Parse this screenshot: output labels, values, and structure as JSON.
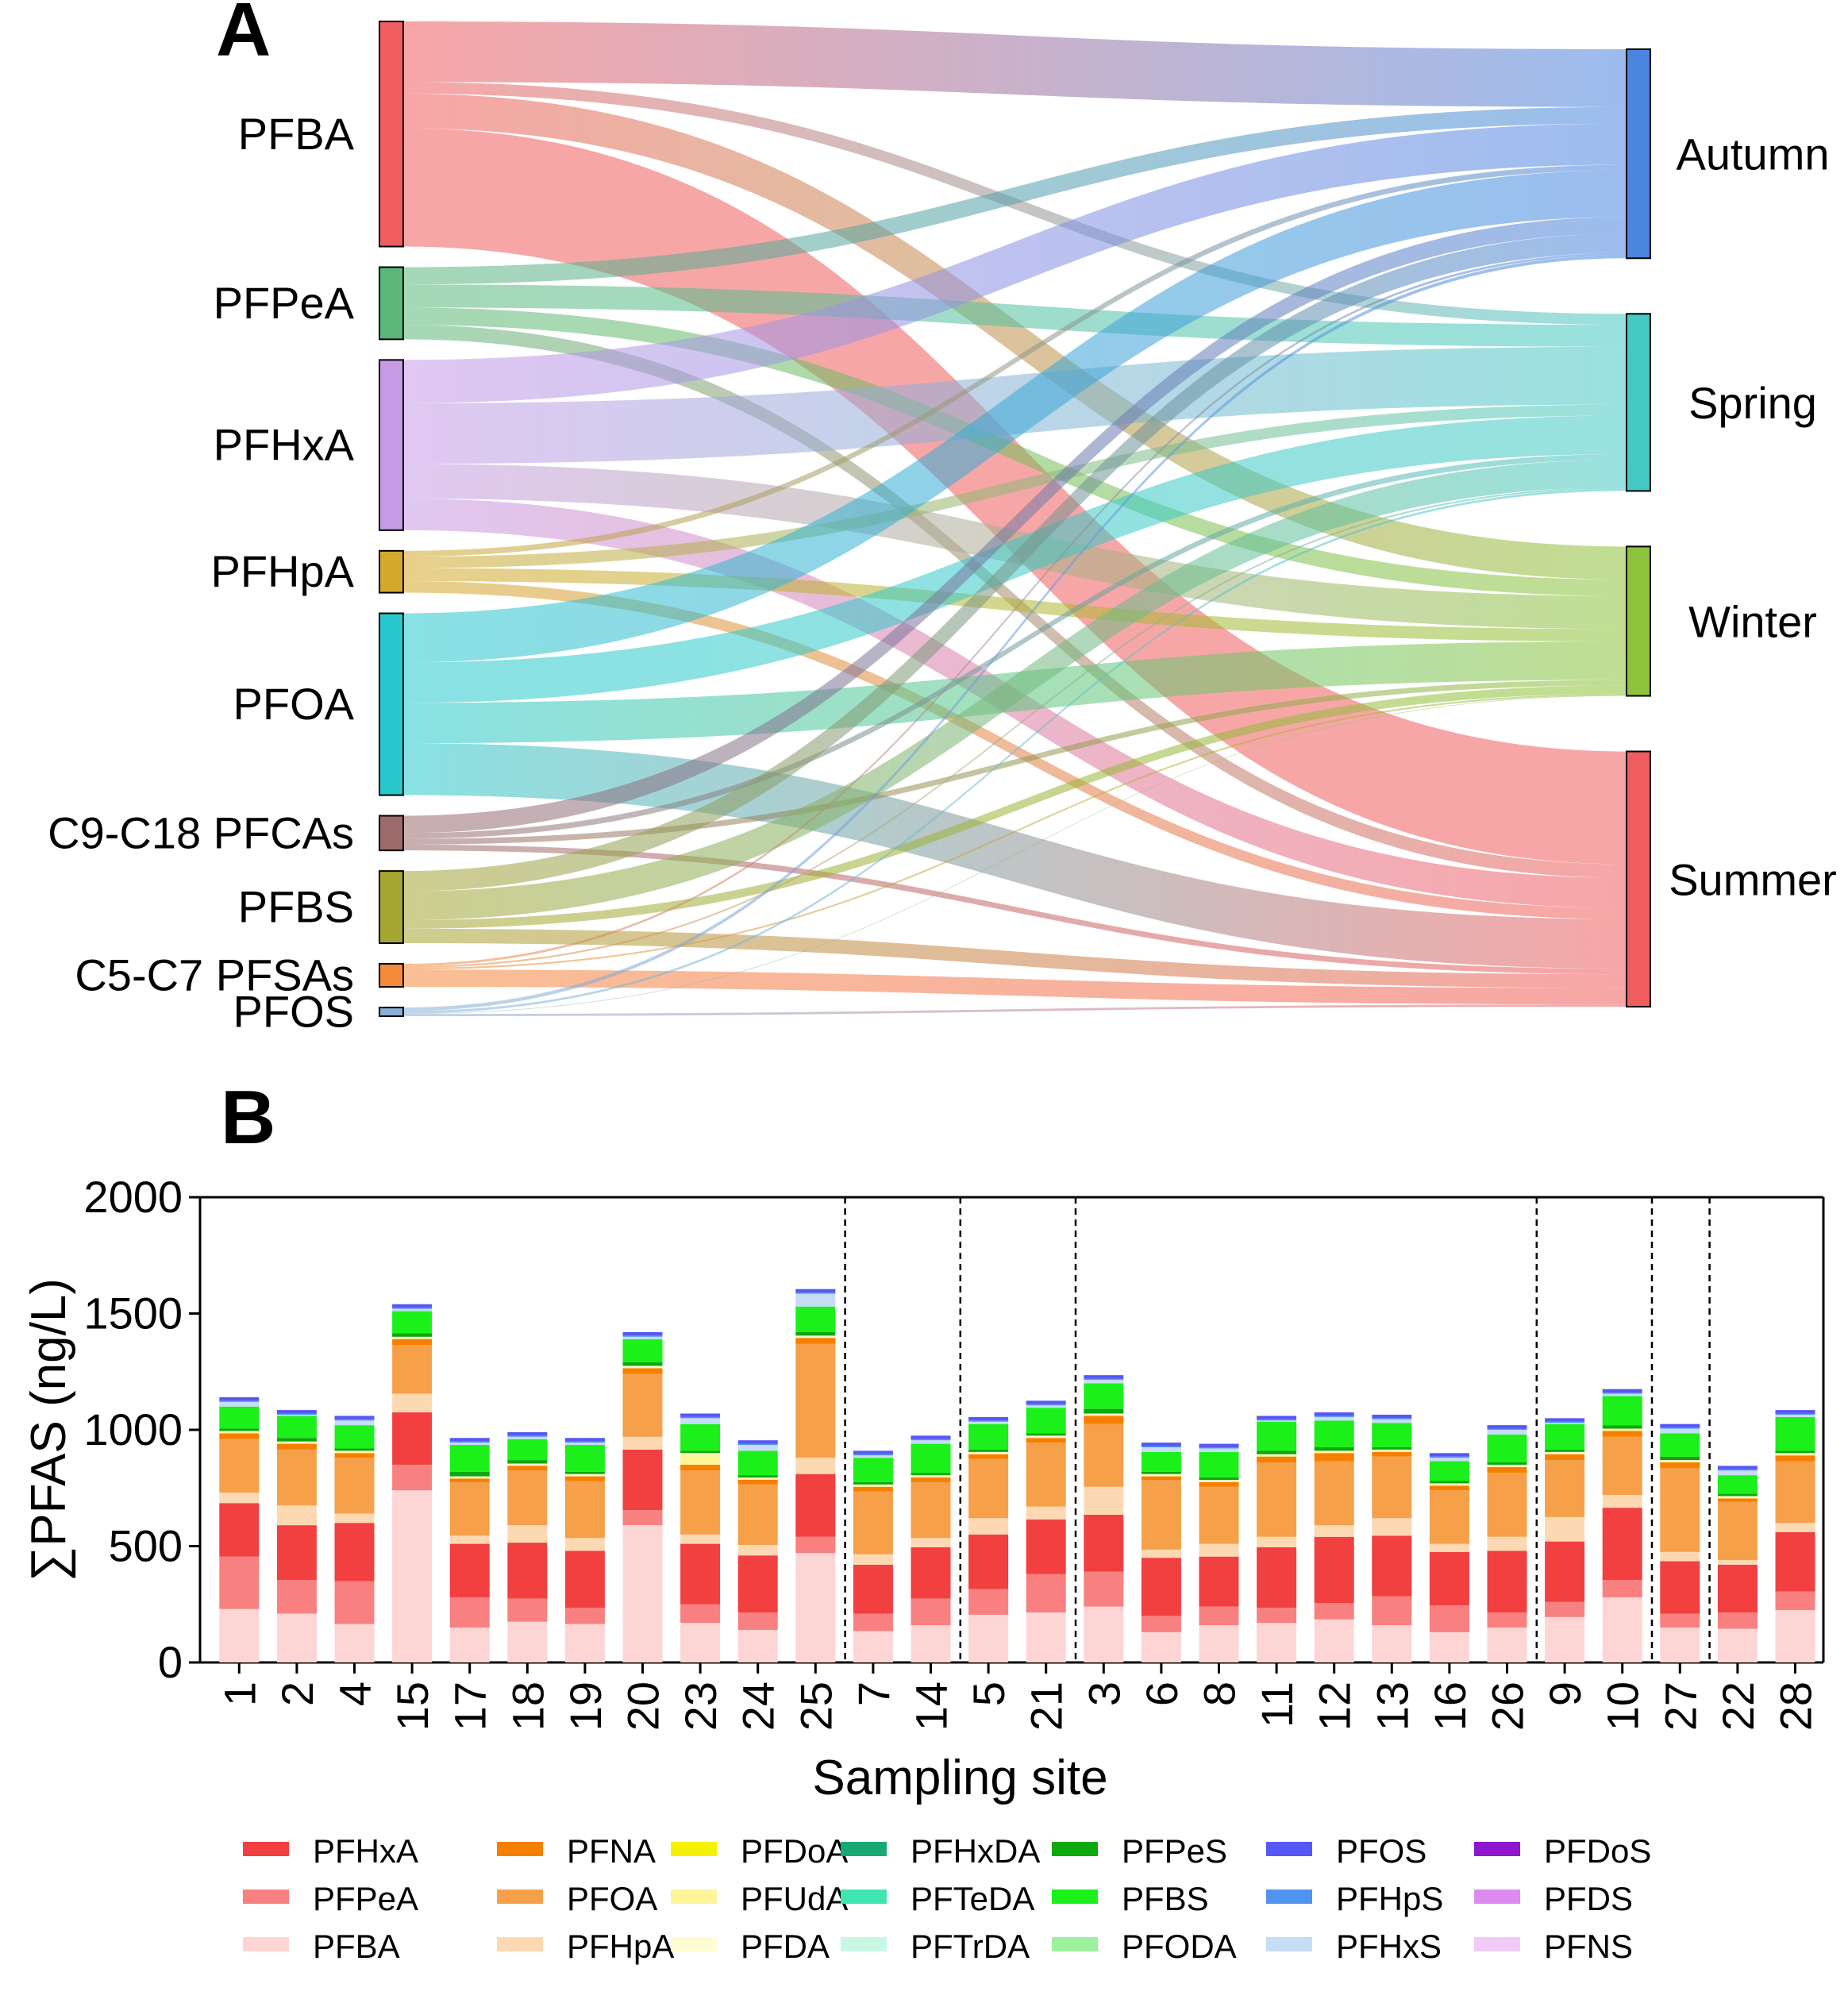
{
  "panel_a_label": "A",
  "panel_b_label": "B",
  "chart_data": [
    {
      "type": "sankey",
      "title": "",
      "sources": [
        {
          "name": "PFBA",
          "color": "#f05d5e"
        },
        {
          "name": "PFPeA",
          "color": "#5bb87a"
        },
        {
          "name": "PFHxA",
          "color": "#c79ae6"
        },
        {
          "name": "PFHpA",
          "color": "#d4a82a"
        },
        {
          "name": "PFOA",
          "color": "#27c9cc"
        },
        {
          "name": "C9-C18 PFCAs",
          "color": "#9b6b6b"
        },
        {
          "name": "PFBS",
          "color": "#a5a531"
        },
        {
          "name": "C5-C7 PFSAs",
          "color": "#f58a3c"
        },
        {
          "name": "PFOS",
          "color": "#8ab0d6"
        }
      ],
      "targets": [
        {
          "name": "Autumn",
          "color": "#4a86e0"
        },
        {
          "name": "Spring",
          "color": "#45c9c4"
        },
        {
          "name": "Winter",
          "color": "#8dc33a"
        },
        {
          "name": "Summer",
          "color": "#f05d5e"
        }
      ],
      "flows": [
        {
          "source": "PFBA",
          "values": [
            210,
            40,
            120,
            410
          ]
        },
        {
          "source": "PFPeA",
          "values": [
            60,
            80,
            60,
            50
          ]
        },
        {
          "source": "PFHxA",
          "values": [
            150,
            210,
            120,
            110
          ]
        },
        {
          "source": "PFHpA",
          "values": [
            20,
            40,
            45,
            40
          ]
        },
        {
          "source": "PFOA",
          "values": [
            170,
            140,
            140,
            180
          ]
        },
        {
          "source": "C9-C18 PFCAs",
          "values": [
            60,
            20,
            20,
            20
          ]
        },
        {
          "source": "PFBS",
          "values": [
            70,
            100,
            30,
            50
          ]
        },
        {
          "source": "C5-C7 PFSAs",
          "values": [
            8,
            6,
            6,
            60
          ]
        },
        {
          "source": "PFOS",
          "values": [
            12,
            8,
            2,
            8
          ]
        }
      ]
    },
    {
      "type": "bar",
      "stacked": true,
      "xlabel": "Sampling site",
      "ylabel": "∑PFAS (ng/L)",
      "ylim": [
        0,
        2000
      ],
      "yticks": [
        "0",
        "500",
        "1000",
        "1500",
        "2000"
      ],
      "categories": [
        "1",
        "2",
        "4",
        "15",
        "17",
        "18",
        "19",
        "20",
        "23",
        "24",
        "25",
        "7",
        "14",
        "5",
        "21",
        "3",
        "6",
        "8",
        "11",
        "12",
        "13",
        "16",
        "26",
        "9",
        "10",
        "27",
        "22",
        "28"
      ],
      "group_separators_after_index": [
        10,
        12,
        14,
        22,
        24,
        25
      ],
      "series": [
        {
          "name": "PFBA",
          "color": "#fdd5d5",
          "values": [
            230,
            210,
            165,
            740,
            150,
            175,
            165,
            590,
            170,
            140,
            470,
            135,
            160,
            205,
            215,
            240,
            130,
            160,
            170,
            185,
            160,
            130,
            150,
            195,
            280,
            150,
            145,
            225
          ]
        },
        {
          "name": "PFPeA",
          "color": "#f98080",
          "values": [
            225,
            145,
            185,
            110,
            130,
            100,
            70,
            65,
            80,
            75,
            70,
            75,
            115,
            110,
            165,
            150,
            70,
            80,
            65,
            70,
            125,
            115,
            65,
            65,
            75,
            60,
            70,
            80
          ]
        },
        {
          "name": "PFHxA",
          "color": "#f23f3f",
          "values": [
            230,
            235,
            250,
            225,
            230,
            240,
            245,
            260,
            260,
            245,
            270,
            210,
            220,
            235,
            235,
            245,
            250,
            215,
            260,
            285,
            260,
            230,
            265,
            260,
            310,
            225,
            205,
            255
          ]
        },
        {
          "name": "PFHpA",
          "color": "#fcd9b3",
          "values": [
            45,
            85,
            40,
            80,
            35,
            75,
            55,
            55,
            40,
            45,
            70,
            45,
            40,
            70,
            55,
            120,
            35,
            55,
            45,
            50,
            75,
            35,
            60,
            105,
            55,
            40,
            20,
            40
          ]
        },
        {
          "name": "PFOA",
          "color": "#f7a04a",
          "values": [
            230,
            240,
            240,
            210,
            230,
            235,
            245,
            270,
            275,
            260,
            490,
            270,
            240,
            255,
            275,
            270,
            300,
            245,
            320,
            275,
            265,
            230,
            275,
            245,
            250,
            360,
            250,
            265
          ]
        },
        {
          "name": "PFNA",
          "color": "#f77f00",
          "values": [
            25,
            25,
            20,
            25,
            15,
            20,
            20,
            25,
            25,
            20,
            25,
            20,
            20,
            20,
            20,
            35,
            15,
            20,
            25,
            35,
            20,
            20,
            25,
            25,
            25,
            25,
            15,
            25
          ]
        },
        {
          "name": "PFDoA",
          "color": "#f5f200",
          "values": [
            0,
            0,
            0,
            0,
            0,
            0,
            0,
            0,
            0,
            0,
            0,
            0,
            0,
            0,
            0,
            0,
            0,
            0,
            0,
            0,
            0,
            0,
            0,
            0,
            0,
            0,
            0,
            0
          ]
        },
        {
          "name": "PFUdA",
          "color": "#fdf59a",
          "values": [
            5,
            5,
            5,
            5,
            5,
            5,
            5,
            5,
            45,
            5,
            5,
            5,
            5,
            5,
            5,
            5,
            5,
            5,
            5,
            5,
            5,
            5,
            5,
            5,
            5,
            5,
            5,
            5
          ]
        },
        {
          "name": "PFDA",
          "color": "#fefcd2",
          "values": [
            5,
            5,
            5,
            5,
            5,
            5,
            5,
            5,
            5,
            5,
            5,
            5,
            5,
            5,
            5,
            5,
            5,
            5,
            5,
            5,
            5,
            5,
            5,
            5,
            5,
            5,
            5,
            5
          ]
        },
        {
          "name": "PFHxDA",
          "color": "#17a873",
          "values": [
            0,
            0,
            0,
            0,
            0,
            0,
            0,
            0,
            0,
            0,
            0,
            0,
            0,
            0,
            0,
            0,
            0,
            0,
            0,
            0,
            0,
            0,
            0,
            0,
            0,
            0,
            0,
            0
          ]
        },
        {
          "name": "PFTeDA",
          "color": "#3fe6b0",
          "values": [
            0,
            0,
            0,
            0,
            0,
            0,
            0,
            0,
            0,
            0,
            0,
            0,
            0,
            0,
            0,
            0,
            0,
            0,
            0,
            0,
            0,
            0,
            0,
            0,
            0,
            0,
            0,
            0
          ]
        },
        {
          "name": "PFTrDA",
          "color": "#c8f7e6",
          "values": [
            0,
            0,
            0,
            0,
            0,
            0,
            0,
            0,
            0,
            0,
            0,
            0,
            0,
            0,
            0,
            0,
            0,
            0,
            0,
            0,
            0,
            0,
            0,
            0,
            0,
            0,
            0,
            0
          ]
        },
        {
          "name": "PFPeS",
          "color": "#0ca80c",
          "values": [
            10,
            15,
            10,
            15,
            20,
            15,
            10,
            15,
            10,
            10,
            15,
            10,
            10,
            10,
            10,
            20,
            10,
            10,
            15,
            15,
            10,
            10,
            10,
            10,
            15,
            15,
            10,
            10
          ]
        },
        {
          "name": "PFBS",
          "color": "#1bf01b",
          "values": [
            95,
            95,
            100,
            95,
            115,
            90,
            115,
            100,
            115,
            105,
            110,
            105,
            125,
            110,
            110,
            110,
            85,
            110,
            125,
            115,
            105,
            85,
            120,
            110,
            125,
            100,
            80,
            145
          ]
        },
        {
          "name": "PFODA",
          "color": "#9df09d",
          "values": [
            0,
            0,
            0,
            0,
            0,
            0,
            0,
            0,
            0,
            0,
            0,
            0,
            0,
            0,
            0,
            0,
            0,
            0,
            0,
            0,
            0,
            0,
            0,
            0,
            0,
            0,
            0,
            0
          ]
        },
        {
          "name": "PFHxS",
          "color": "#c7dcf5",
          "values": [
            20,
            5,
            20,
            10,
            10,
            10,
            10,
            10,
            25,
            25,
            55,
            10,
            15,
            10,
            10,
            15,
            20,
            15,
            5,
            15,
            15,
            15,
            20,
            5,
            10,
            20,
            20,
            10
          ]
        },
        {
          "name": "PFHpS",
          "color": "#4f95f0",
          "values": [
            5,
            5,
            5,
            5,
            5,
            5,
            5,
            5,
            5,
            5,
            5,
            5,
            5,
            5,
            5,
            5,
            5,
            5,
            5,
            5,
            5,
            5,
            5,
            5,
            5,
            5,
            5,
            5
          ]
        },
        {
          "name": "PFOS",
          "color": "#5757f5",
          "values": [
            15,
            15,
            15,
            15,
            15,
            15,
            15,
            15,
            15,
            15,
            15,
            15,
            15,
            15,
            15,
            15,
            15,
            15,
            15,
            15,
            15,
            15,
            15,
            15,
            15,
            15,
            15,
            15
          ]
        },
        {
          "name": "PFDoS",
          "color": "#8f16cf",
          "values": [
            0,
            0,
            0,
            0,
            0,
            0,
            0,
            0,
            0,
            0,
            0,
            0,
            0,
            0,
            0,
            0,
            0,
            0,
            0,
            0,
            0,
            0,
            0,
            0,
            0,
            0,
            0,
            0
          ]
        },
        {
          "name": "PFDS",
          "color": "#dd8bf0",
          "values": [
            0,
            0,
            0,
            0,
            0,
            0,
            0,
            0,
            0,
            0,
            0,
            0,
            0,
            0,
            0,
            0,
            0,
            0,
            0,
            0,
            0,
            0,
            0,
            0,
            0,
            0,
            0,
            0
          ]
        },
        {
          "name": "PFNS",
          "color": "#f0cbf5",
          "values": [
            0,
            0,
            0,
            0,
            0,
            0,
            0,
            0,
            0,
            0,
            0,
            0,
            0,
            0,
            0,
            0,
            0,
            0,
            0,
            0,
            0,
            0,
            0,
            0,
            0,
            0,
            0,
            0
          ]
        }
      ],
      "legend": [
        [
          "PFHxA",
          "PFNA",
          "PFDoA",
          "PFHxDA",
          "PFPeS",
          "PFOS",
          "PFDoS"
        ],
        [
          "PFPeA",
          "PFOA",
          "PFUdA",
          "PFTeDA",
          "PFBS",
          "PFHpS",
          "PFDS"
        ],
        [
          "PFBA",
          "PFHpA",
          "PFDA",
          "PFTrDA",
          "PFODA",
          "PFHxS",
          "PFNS"
        ]
      ]
    }
  ]
}
